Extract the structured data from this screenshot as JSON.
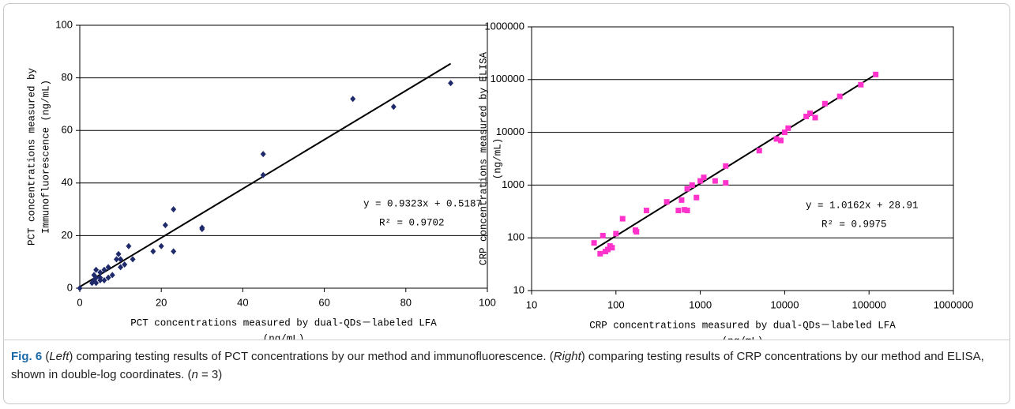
{
  "chart_data": [
    {
      "type": "scatter",
      "marker": "diamond",
      "color": "#1f2a6b",
      "grid": "y",
      "x_label": [
        "PCT concentrations measured by dual-QDs－labeled LFA",
        "(ng/mL)"
      ],
      "y_label": [
        "PCT concentrations measured by",
        "Immunofluorescence (ng/mL)"
      ],
      "xlim": [
        0,
        100
      ],
      "xticks": [
        0,
        20,
        40,
        60,
        80,
        100
      ],
      "ylim": [
        0,
        100
      ],
      "yticks": [
        0,
        20,
        40,
        60,
        80,
        100
      ],
      "x": [
        0,
        3,
        3.5,
        4,
        3.5,
        4,
        5,
        5,
        6,
        6,
        7,
        7,
        8,
        9,
        9.5,
        10,
        10,
        11,
        12,
        13,
        18,
        20,
        21,
        23,
        23,
        30,
        30,
        45,
        45,
        67,
        77,
        91,
        4,
        5
      ],
      "values": [
        0,
        2,
        3,
        2,
        5,
        7,
        4,
        6,
        3,
        7,
        4,
        8,
        5,
        11,
        13,
        8,
        11,
        9,
        16,
        11,
        14,
        16,
        24,
        30,
        14,
        23,
        22.5,
        51,
        43,
        72,
        69,
        78,
        4,
        3
      ],
      "trendline": {
        "x": [
          0,
          91
        ],
        "values": [
          0.52,
          85.4
        ]
      },
      "annotations": [
        "y = 0.9323x + 0.5187",
        "R² = 0.9702"
      ]
    },
    {
      "type": "scatter",
      "marker": "square",
      "color": "#ff33cc",
      "grid": "y",
      "xscale": "log",
      "yscale": "log",
      "x_label": [
        "CRP concentrations measured by dual-QDs－labeled LFA",
        "(ng/mL)"
      ],
      "y_label": [
        "CRP concentrations measured by ELISA",
        "(ng/mL)"
      ],
      "xlim": [
        10,
        1000000
      ],
      "xticks": [
        10,
        100,
        1000,
        10000,
        100000,
        1000000
      ],
      "ylim": [
        10,
        1000000
      ],
      "yticks": [
        10,
        100,
        1000,
        10000,
        100000,
        1000000
      ],
      "x": [
        55,
        65,
        70,
        75,
        80,
        85,
        90,
        100,
        120,
        170,
        175,
        230,
        400,
        550,
        600,
        650,
        700,
        700,
        800,
        900,
        1000,
        1100,
        1500,
        2000,
        2000,
        5000,
        8000,
        9000,
        10000,
        11000,
        18000,
        20000,
        23000,
        30000,
        45000,
        80000,
        120000
      ],
      "values": [
        80,
        50,
        110,
        55,
        60,
        70,
        65,
        120,
        230,
        140,
        130,
        330,
        480,
        330,
        520,
        340,
        330,
        850,
        1000,
        580,
        1200,
        1400,
        1200,
        2300,
        1100,
        4500,
        7500,
        7000,
        10000,
        12000,
        20000,
        23000,
        19000,
        35000,
        48000,
        80000,
        125000
      ],
      "trendline": {
        "x": [
          55,
          120000
        ],
        "values": [
          60,
          125000
        ]
      },
      "annotations": [
        "y = 1.0162x + 28.91",
        "R² = 0.9975"
      ]
    }
  ],
  "caption": {
    "label": "Fig. 6",
    "parts": [
      " (",
      "Left",
      ") comparing testing results of PCT concentrations by our method and immunofluorescence. (",
      "Right",
      ") comparing testing results of CRP concentrations by our method and ELISA, shown in double-log coordinates. (",
      "n",
      " = 3)"
    ]
  }
}
